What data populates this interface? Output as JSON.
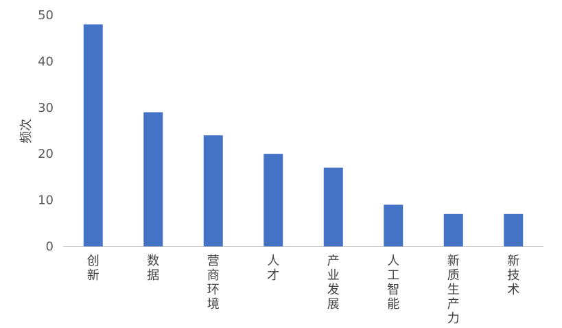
{
  "chart_data": {
    "type": "bar",
    "categories": [
      "创新",
      "数据",
      "营商环境",
      "人才",
      "产业发展",
      "人工智能",
      "新质生产力",
      "新技术"
    ],
    "values": [
      48,
      29,
      24,
      20,
      17,
      9,
      7,
      7
    ],
    "title": "",
    "xlabel": "",
    "ylabel": "频次",
    "ylim": [
      0,
      50
    ],
    "yticks": [
      0,
      10,
      20,
      30,
      40,
      50
    ],
    "grid": false,
    "legend": "none",
    "bar_color": "#4472C4",
    "axis_color": "#BFBFBF"
  }
}
